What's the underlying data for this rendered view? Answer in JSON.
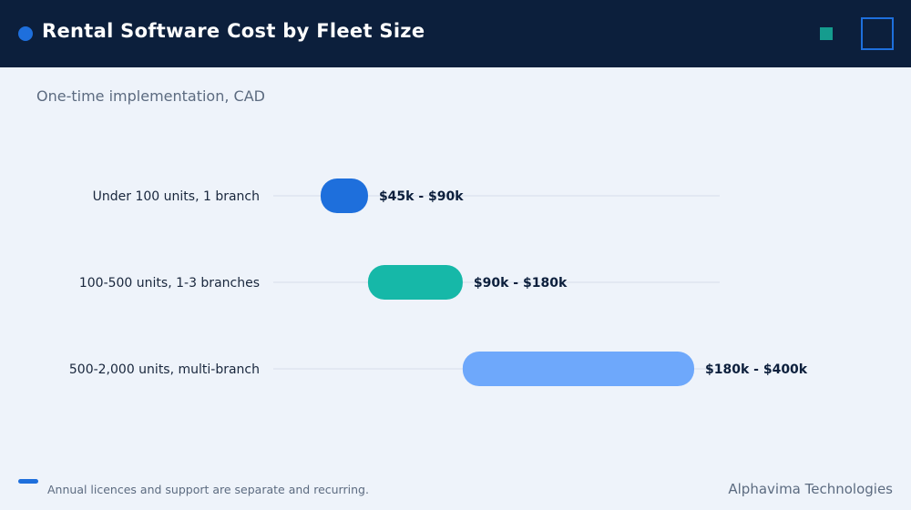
{
  "header": {
    "title": "Rental Software Cost by Fleet Size"
  },
  "subtitle": "One-time implementation, CAD",
  "chart_data": {
    "type": "bar",
    "orientation": "horizontal-range",
    "categories": [
      "Under 100 units, 1 branch",
      "100-500 units, 1-3 branches",
      "500-2,000 units, multi-branch"
    ],
    "ranges": [
      {
        "low": 45,
        "high": 90,
        "label": "$45k - $90k",
        "color": "#1e6fdc"
      },
      {
        "low": 90,
        "high": 180,
        "label": "$90k - $180k",
        "color": "#16b8a8"
      },
      {
        "low": 180,
        "high": 400,
        "label": "$180k - $400k",
        "color": "#6ea8fb"
      }
    ],
    "unit": "k CAD",
    "xlim": [
      0,
      420
    ],
    "grid": false,
    "legend": "none"
  },
  "footer": {
    "note": "Annual licences and support are separate and recurring.",
    "brand": "Alphavima Technologies"
  }
}
